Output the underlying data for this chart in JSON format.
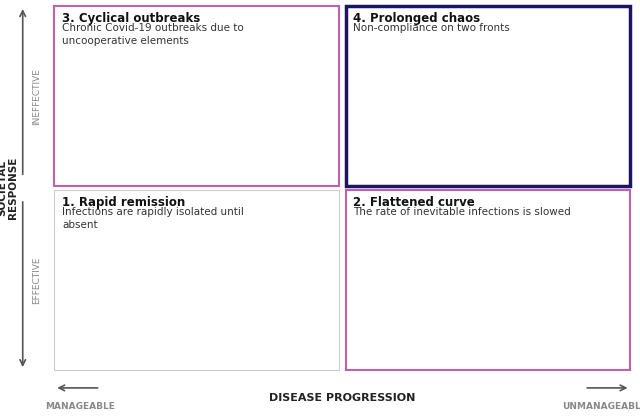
{
  "background_color": "#ffffff",
  "quadrants": [
    {
      "id": 3,
      "title": "3. Cyclical outbreaks",
      "subtitle": "Chronic Covid-19 outbreaks due to\nuncooperative elements",
      "row": 0,
      "col": 0,
      "border_color": "#c060b0",
      "border_width": 1.5
    },
    {
      "id": 4,
      "title": "4. Prolonged chaos",
      "subtitle": "Non-compliance on two fronts",
      "row": 0,
      "col": 1,
      "border_color": "#1e1560",
      "border_width": 2.5
    },
    {
      "id": 1,
      "title": "1. Rapid remission",
      "subtitle": "Infections are rapidly isolated until\nabsent",
      "row": 1,
      "col": 0,
      "border_color": "#cccccc",
      "border_width": 0.8
    },
    {
      "id": 2,
      "title": "2. Flattened curve",
      "subtitle": "The rate of inevitable infections is slowed",
      "row": 1,
      "col": 1,
      "border_color": "#c060b0",
      "border_width": 1.5
    }
  ],
  "curve_colors": {
    "cyclical_top": "#aa50c0",
    "cyclical_bottom": "#bb80c8",
    "prolonged": "#1e1560",
    "rapid_top": "#333333",
    "rapid_bottom": "#555555",
    "flattened_top": "#cc88cc",
    "flattened_bottom": "#ddaadd"
  },
  "title_fontsize": 8.5,
  "subtitle_fontsize": 7.5,
  "label_fontsize": 6.5,
  "axis_label_fontsize": 7,
  "outer_label_fontsize": 7.5
}
